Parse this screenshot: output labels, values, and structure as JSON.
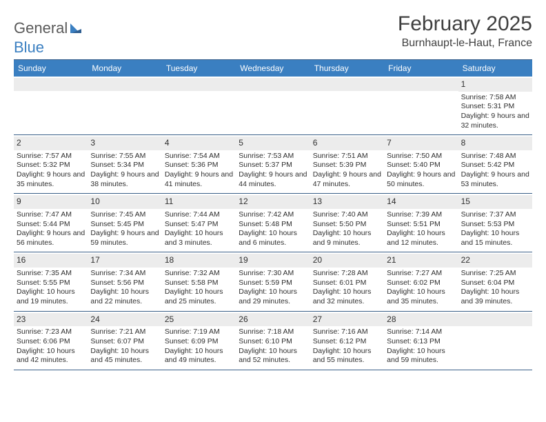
{
  "logo": {
    "text1": "General",
    "text2": "Blue"
  },
  "title": "February 2025",
  "location": "Burnhaupt-le-Haut, France",
  "colors": {
    "header_bg": "#3a7fc1",
    "header_text": "#ffffff",
    "rule": "#385e87",
    "daynum_bg": "#ececec",
    "text": "#2e2e2e",
    "logo_gray": "#5a5a5a",
    "logo_blue": "#3a7fc1"
  },
  "weekdays": [
    "Sunday",
    "Monday",
    "Tuesday",
    "Wednesday",
    "Thursday",
    "Friday",
    "Saturday"
  ],
  "weeks": [
    [
      null,
      null,
      null,
      null,
      null,
      null,
      {
        "n": "1",
        "sr": "Sunrise: 7:58 AM",
        "ss": "Sunset: 5:31 PM",
        "dl": "Daylight: 9 hours and 32 minutes."
      }
    ],
    [
      {
        "n": "2",
        "sr": "Sunrise: 7:57 AM",
        "ss": "Sunset: 5:32 PM",
        "dl": "Daylight: 9 hours and 35 minutes."
      },
      {
        "n": "3",
        "sr": "Sunrise: 7:55 AM",
        "ss": "Sunset: 5:34 PM",
        "dl": "Daylight: 9 hours and 38 minutes."
      },
      {
        "n": "4",
        "sr": "Sunrise: 7:54 AM",
        "ss": "Sunset: 5:36 PM",
        "dl": "Daylight: 9 hours and 41 minutes."
      },
      {
        "n": "5",
        "sr": "Sunrise: 7:53 AM",
        "ss": "Sunset: 5:37 PM",
        "dl": "Daylight: 9 hours and 44 minutes."
      },
      {
        "n": "6",
        "sr": "Sunrise: 7:51 AM",
        "ss": "Sunset: 5:39 PM",
        "dl": "Daylight: 9 hours and 47 minutes."
      },
      {
        "n": "7",
        "sr": "Sunrise: 7:50 AM",
        "ss": "Sunset: 5:40 PM",
        "dl": "Daylight: 9 hours and 50 minutes."
      },
      {
        "n": "8",
        "sr": "Sunrise: 7:48 AM",
        "ss": "Sunset: 5:42 PM",
        "dl": "Daylight: 9 hours and 53 minutes."
      }
    ],
    [
      {
        "n": "9",
        "sr": "Sunrise: 7:47 AM",
        "ss": "Sunset: 5:44 PM",
        "dl": "Daylight: 9 hours and 56 minutes."
      },
      {
        "n": "10",
        "sr": "Sunrise: 7:45 AM",
        "ss": "Sunset: 5:45 PM",
        "dl": "Daylight: 9 hours and 59 minutes."
      },
      {
        "n": "11",
        "sr": "Sunrise: 7:44 AM",
        "ss": "Sunset: 5:47 PM",
        "dl": "Daylight: 10 hours and 3 minutes."
      },
      {
        "n": "12",
        "sr": "Sunrise: 7:42 AM",
        "ss": "Sunset: 5:48 PM",
        "dl": "Daylight: 10 hours and 6 minutes."
      },
      {
        "n": "13",
        "sr": "Sunrise: 7:40 AM",
        "ss": "Sunset: 5:50 PM",
        "dl": "Daylight: 10 hours and 9 minutes."
      },
      {
        "n": "14",
        "sr": "Sunrise: 7:39 AM",
        "ss": "Sunset: 5:51 PM",
        "dl": "Daylight: 10 hours and 12 minutes."
      },
      {
        "n": "15",
        "sr": "Sunrise: 7:37 AM",
        "ss": "Sunset: 5:53 PM",
        "dl": "Daylight: 10 hours and 15 minutes."
      }
    ],
    [
      {
        "n": "16",
        "sr": "Sunrise: 7:35 AM",
        "ss": "Sunset: 5:55 PM",
        "dl": "Daylight: 10 hours and 19 minutes."
      },
      {
        "n": "17",
        "sr": "Sunrise: 7:34 AM",
        "ss": "Sunset: 5:56 PM",
        "dl": "Daylight: 10 hours and 22 minutes."
      },
      {
        "n": "18",
        "sr": "Sunrise: 7:32 AM",
        "ss": "Sunset: 5:58 PM",
        "dl": "Daylight: 10 hours and 25 minutes."
      },
      {
        "n": "19",
        "sr": "Sunrise: 7:30 AM",
        "ss": "Sunset: 5:59 PM",
        "dl": "Daylight: 10 hours and 29 minutes."
      },
      {
        "n": "20",
        "sr": "Sunrise: 7:28 AM",
        "ss": "Sunset: 6:01 PM",
        "dl": "Daylight: 10 hours and 32 minutes."
      },
      {
        "n": "21",
        "sr": "Sunrise: 7:27 AM",
        "ss": "Sunset: 6:02 PM",
        "dl": "Daylight: 10 hours and 35 minutes."
      },
      {
        "n": "22",
        "sr": "Sunrise: 7:25 AM",
        "ss": "Sunset: 6:04 PM",
        "dl": "Daylight: 10 hours and 39 minutes."
      }
    ],
    [
      {
        "n": "23",
        "sr": "Sunrise: 7:23 AM",
        "ss": "Sunset: 6:06 PM",
        "dl": "Daylight: 10 hours and 42 minutes."
      },
      {
        "n": "24",
        "sr": "Sunrise: 7:21 AM",
        "ss": "Sunset: 6:07 PM",
        "dl": "Daylight: 10 hours and 45 minutes."
      },
      {
        "n": "25",
        "sr": "Sunrise: 7:19 AM",
        "ss": "Sunset: 6:09 PM",
        "dl": "Daylight: 10 hours and 49 minutes."
      },
      {
        "n": "26",
        "sr": "Sunrise: 7:18 AM",
        "ss": "Sunset: 6:10 PM",
        "dl": "Daylight: 10 hours and 52 minutes."
      },
      {
        "n": "27",
        "sr": "Sunrise: 7:16 AM",
        "ss": "Sunset: 6:12 PM",
        "dl": "Daylight: 10 hours and 55 minutes."
      },
      {
        "n": "28",
        "sr": "Sunrise: 7:14 AM",
        "ss": "Sunset: 6:13 PM",
        "dl": "Daylight: 10 hours and 59 minutes."
      },
      null
    ]
  ]
}
